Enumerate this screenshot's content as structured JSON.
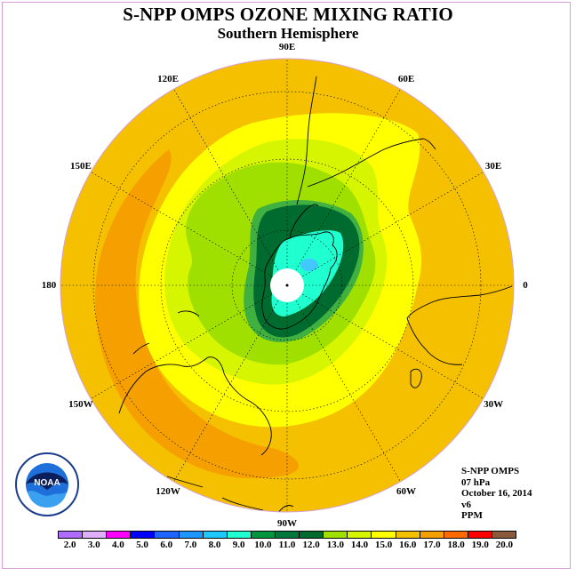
{
  "header": {
    "title": "S-NPP OMPS OZONE MIXING RATIO",
    "subtitle": "Southern Hemisphere"
  },
  "map": {
    "projection": "polar stereographic",
    "hemisphere": "south",
    "longitude_labels": [
      "90W",
      "60W",
      "30W",
      "0",
      "30E",
      "60E",
      "90E",
      "120E",
      "150E",
      "180",
      "150W",
      "120W"
    ],
    "longitude_degrees": [
      -90,
      -60,
      -30,
      0,
      30,
      60,
      90,
      120,
      150,
      180,
      -150,
      -120
    ],
    "colors": {
      "outer_band": "#f5c000",
      "orange_band": "#f5a000",
      "yellow_band": "#ffff00",
      "yellow_green": "#d6f500",
      "light_green": "#a0e000",
      "green": "#40b040",
      "dark_green": "#006b2e",
      "cyan": "#20ffd0",
      "light_blue": "#40c8ff",
      "pole_mask": "#ffffff",
      "coastline": "#000000",
      "border": "#d6a0d6"
    }
  },
  "info": {
    "instrument": "S-NPP OMPS",
    "level": "07 hPa",
    "date": "October 16, 2014",
    "version": "v6",
    "units": "PPM"
  },
  "colorbar": {
    "ticks": [
      "2.0",
      "3.0",
      "4.0",
      "5.0",
      "6.0",
      "7.0",
      "8.0",
      "9.0",
      "10.0",
      "11.0",
      "12.0",
      "13.0",
      "14.0",
      "15.0",
      "16.0",
      "17.0",
      "18.0",
      "19.0",
      "20.0"
    ],
    "colors": [
      "#b06bff",
      "#e0b0ff",
      "#ff00ff",
      "#0000ff",
      "#1e64ff",
      "#1e96ff",
      "#1ec8ff",
      "#20ffd0",
      "#009640",
      "#00783c",
      "#006b2e",
      "#a0e000",
      "#d6f500",
      "#ffff00",
      "#f5c000",
      "#f5a000",
      "#ff6a00",
      "#ff0000",
      "#8b5a3c"
    ]
  },
  "logo": {
    "name": "NOAA",
    "ring_text": "NATIONAL OCEANIC AND ATMOSPHERIC ADMINISTRATION",
    "bottom_text": "U.S. DEPARTMENT OF COMMERCE"
  }
}
